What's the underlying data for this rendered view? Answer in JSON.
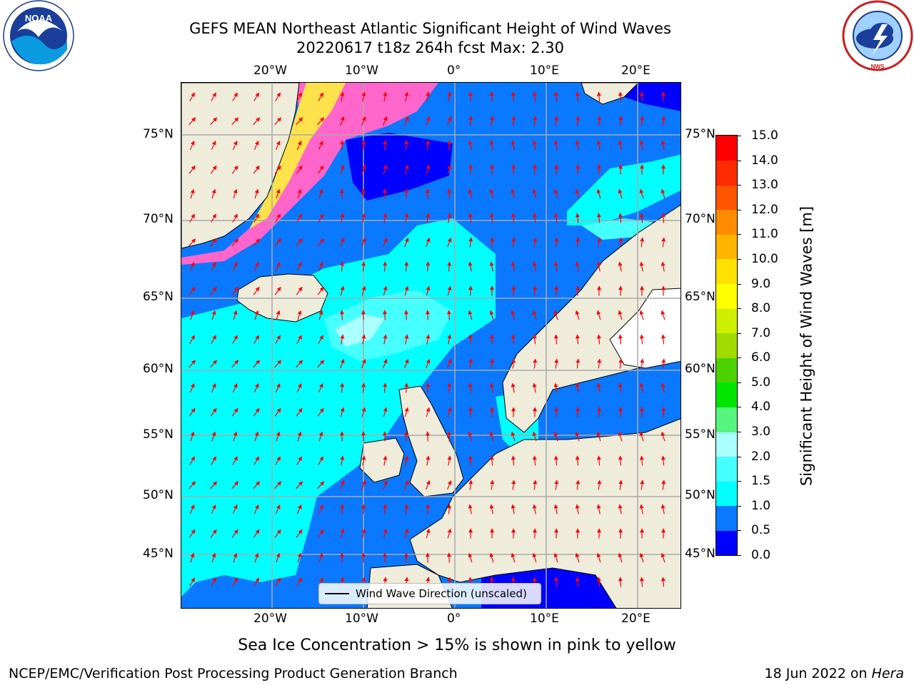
{
  "title_line1": "GEFS MEAN Northeast Atlantic Significant Height of Wind Waves",
  "title_line2": "20220617 t18z 264h fcst   Max: 2.30",
  "logos": {
    "left": "NOAA",
    "right": "NWS"
  },
  "lon_labels": [
    "20°W",
    "10°W",
    "0°",
    "10°E",
    "20°E"
  ],
  "lat_labels": [
    "75°N",
    "70°N",
    "65°N",
    "60°N",
    "55°N",
    "50°N",
    "45°N"
  ],
  "colorbar": {
    "title": "Significant Height of Wind Waves [m]",
    "ticks": [
      "0.0",
      "0.5",
      "1.0",
      "1.5",
      "2.0",
      "3.0",
      "4.0",
      "5.0",
      "6.0",
      "7.0",
      "8.0",
      "9.0",
      "10.0",
      "11.0",
      "12.0",
      "13.0",
      "14.0",
      "15.0"
    ],
    "colors": [
      "#0000ff",
      "#0a78ff",
      "#00ffff",
      "#46ffff",
      "#aaffff",
      "#55f57f",
      "#00e600",
      "#4bd200",
      "#a0dc00",
      "#cdf000",
      "#ffff00",
      "#ffe100",
      "#ffb400",
      "#ff8c00",
      "#ff5500",
      "#ff2b00",
      "#ff0000"
    ]
  },
  "legend_label": "Wind Wave Direction (unscaled)",
  "sea_ice_note": "Sea Ice Concentration > 15% is shown in pink to yellow",
  "footer_left": "NCEP/EMC/Verification Post Processing Product Generation Branch",
  "footer_right_date": "18 Jun 2022 on ",
  "footer_right_host": "Hera"
}
